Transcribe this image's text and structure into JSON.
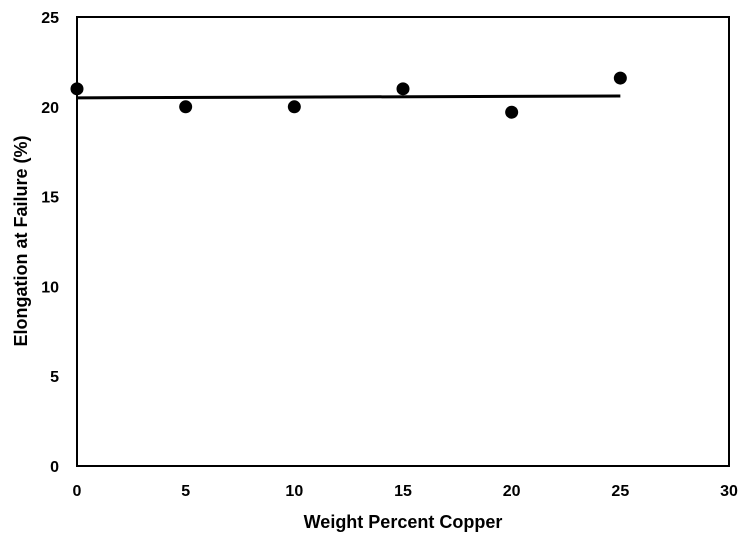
{
  "chart_data": {
    "type": "scatter",
    "title": "",
    "xlabel": "Weight Percent Copper",
    "ylabel": "Elongation at Failure (%)",
    "xlim": [
      0,
      30
    ],
    "ylim": [
      0,
      25
    ],
    "xticks": [
      0,
      5,
      10,
      15,
      20,
      25,
      30
    ],
    "yticks": [
      0,
      5,
      10,
      15,
      20,
      25
    ],
    "grid": false,
    "legend": "none",
    "series": [
      {
        "x": [
          0,
          5,
          10,
          15,
          20,
          25
        ],
        "y": [
          21.0,
          20.0,
          20.0,
          21.0,
          19.7,
          21.6
        ],
        "marker": "circle",
        "color": "#000000"
      }
    ],
    "trendline": {
      "type": "linear",
      "x": [
        0,
        25
      ],
      "y": [
        20.5,
        20.6
      ],
      "color": "#000000"
    }
  }
}
